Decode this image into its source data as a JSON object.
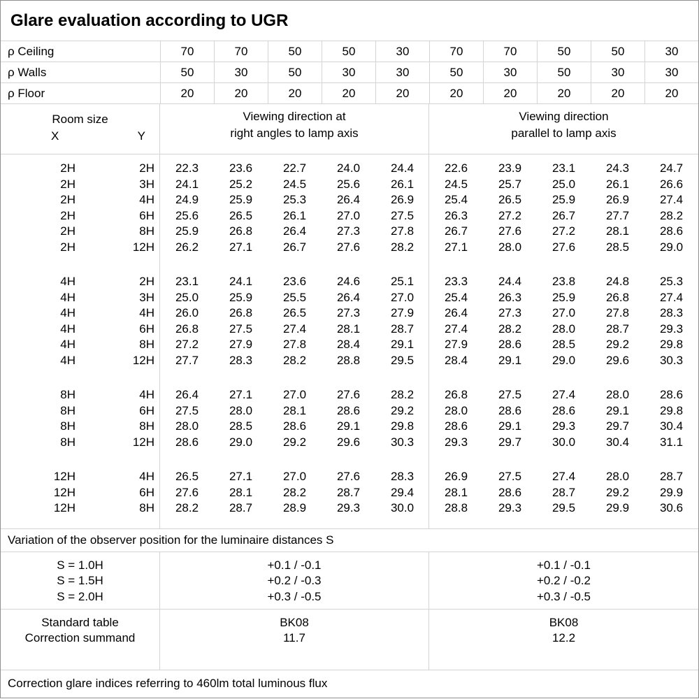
{
  "title": "Glare evaluation according to UGR",
  "reflectance_rows": [
    {
      "label": "ρ Ceiling",
      "values": [
        "70",
        "70",
        "50",
        "50",
        "30",
        "70",
        "70",
        "50",
        "50",
        "30"
      ]
    },
    {
      "label": "ρ Walls",
      "values": [
        "50",
        "30",
        "50",
        "30",
        "30",
        "50",
        "30",
        "50",
        "30",
        "30"
      ]
    },
    {
      "label": "ρ Floor",
      "values": [
        "20",
        "20",
        "20",
        "20",
        "20",
        "20",
        "20",
        "20",
        "20",
        "20"
      ]
    }
  ],
  "headers": {
    "room_size": "Room size",
    "x": "X",
    "y": "Y",
    "perpendicular_line1": "Viewing direction at",
    "perpendicular_line2": "right angles to lamp axis",
    "parallel_line1": "Viewing direction",
    "parallel_line2": "parallel to lamp axis"
  },
  "ugr_table": {
    "type": "table",
    "blocks": [
      {
        "rows": [
          {
            "x": "2H",
            "y": "2H",
            "perpendicular": [
              "22.3",
              "23.6",
              "22.7",
              "24.0",
              "24.4"
            ],
            "parallel": [
              "22.6",
              "23.9",
              "23.1",
              "24.3",
              "24.7"
            ]
          },
          {
            "x": "2H",
            "y": "3H",
            "perpendicular": [
              "24.1",
              "25.2",
              "24.5",
              "25.6",
              "26.1"
            ],
            "parallel": [
              "24.5",
              "25.7",
              "25.0",
              "26.1",
              "26.6"
            ]
          },
          {
            "x": "2H",
            "y": "4H",
            "perpendicular": [
              "24.9",
              "25.9",
              "25.3",
              "26.4",
              "26.9"
            ],
            "parallel": [
              "25.4",
              "26.5",
              "25.9",
              "26.9",
              "27.4"
            ]
          },
          {
            "x": "2H",
            "y": "6H",
            "perpendicular": [
              "25.6",
              "26.5",
              "26.1",
              "27.0",
              "27.5"
            ],
            "parallel": [
              "26.3",
              "27.2",
              "26.7",
              "27.7",
              "28.2"
            ]
          },
          {
            "x": "2H",
            "y": "8H",
            "perpendicular": [
              "25.9",
              "26.8",
              "26.4",
              "27.3",
              "27.8"
            ],
            "parallel": [
              "26.7",
              "27.6",
              "27.2",
              "28.1",
              "28.6"
            ]
          },
          {
            "x": "2H",
            "y": "12H",
            "perpendicular": [
              "26.2",
              "27.1",
              "26.7",
              "27.6",
              "28.2"
            ],
            "parallel": [
              "27.1",
              "28.0",
              "27.6",
              "28.5",
              "29.0"
            ]
          }
        ]
      },
      {
        "rows": [
          {
            "x": "4H",
            "y": "2H",
            "perpendicular": [
              "23.1",
              "24.1",
              "23.6",
              "24.6",
              "25.1"
            ],
            "parallel": [
              "23.3",
              "24.4",
              "23.8",
              "24.8",
              "25.3"
            ]
          },
          {
            "x": "4H",
            "y": "3H",
            "perpendicular": [
              "25.0",
              "25.9",
              "25.5",
              "26.4",
              "27.0"
            ],
            "parallel": [
              "25.4",
              "26.3",
              "25.9",
              "26.8",
              "27.4"
            ]
          },
          {
            "x": "4H",
            "y": "4H",
            "perpendicular": [
              "26.0",
              "26.8",
              "26.5",
              "27.3",
              "27.9"
            ],
            "parallel": [
              "26.4",
              "27.3",
              "27.0",
              "27.8",
              "28.3"
            ]
          },
          {
            "x": "4H",
            "y": "6H",
            "perpendicular": [
              "26.8",
              "27.5",
              "27.4",
              "28.1",
              "28.7"
            ],
            "parallel": [
              "27.4",
              "28.2",
              "28.0",
              "28.7",
              "29.3"
            ]
          },
          {
            "x": "4H",
            "y": "8H",
            "perpendicular": [
              "27.2",
              "27.9",
              "27.8",
              "28.4",
              "29.1"
            ],
            "parallel": [
              "27.9",
              "28.6",
              "28.5",
              "29.2",
              "29.8"
            ]
          },
          {
            "x": "4H",
            "y": "12H",
            "perpendicular": [
              "27.7",
              "28.3",
              "28.2",
              "28.8",
              "29.5"
            ],
            "parallel": [
              "28.4",
              "29.1",
              "29.0",
              "29.6",
              "30.3"
            ]
          }
        ]
      },
      {
        "rows": [
          {
            "x": "8H",
            "y": "4H",
            "perpendicular": [
              "26.4",
              "27.1",
              "27.0",
              "27.6",
              "28.2"
            ],
            "parallel": [
              "26.8",
              "27.5",
              "27.4",
              "28.0",
              "28.6"
            ]
          },
          {
            "x": "8H",
            "y": "6H",
            "perpendicular": [
              "27.5",
              "28.0",
              "28.1",
              "28.6",
              "29.2"
            ],
            "parallel": [
              "28.0",
              "28.6",
              "28.6",
              "29.1",
              "29.8"
            ]
          },
          {
            "x": "8H",
            "y": "8H",
            "perpendicular": [
              "28.0",
              "28.5",
              "28.6",
              "29.1",
              "29.8"
            ],
            "parallel": [
              "28.6",
              "29.1",
              "29.3",
              "29.7",
              "30.4"
            ]
          },
          {
            "x": "8H",
            "y": "12H",
            "perpendicular": [
              "28.6",
              "29.0",
              "29.2",
              "29.6",
              "30.3"
            ],
            "parallel": [
              "29.3",
              "29.7",
              "30.0",
              "30.4",
              "31.1"
            ]
          }
        ]
      },
      {
        "rows": [
          {
            "x": "12H",
            "y": "4H",
            "perpendicular": [
              "26.5",
              "27.1",
              "27.0",
              "27.6",
              "28.3"
            ],
            "parallel": [
              "26.9",
              "27.5",
              "27.4",
              "28.0",
              "28.7"
            ]
          },
          {
            "x": "12H",
            "y": "6H",
            "perpendicular": [
              "27.6",
              "28.1",
              "28.2",
              "28.7",
              "29.4"
            ],
            "parallel": [
              "28.1",
              "28.6",
              "28.7",
              "29.2",
              "29.9"
            ]
          },
          {
            "x": "12H",
            "y": "8H",
            "perpendicular": [
              "28.2",
              "28.7",
              "28.9",
              "29.3",
              "30.0"
            ],
            "parallel": [
              "28.8",
              "29.3",
              "29.5",
              "29.9",
              "30.6"
            ]
          }
        ]
      }
    ]
  },
  "variation": {
    "note": "Variation of the observer position for the luminaire distances S",
    "rows": [
      {
        "label": "S = 1.0H",
        "perpendicular": "+0.1 / -0.1",
        "parallel": "+0.1 / -0.1"
      },
      {
        "label": "S = 1.5H",
        "perpendicular": "+0.2 / -0.3",
        "parallel": "+0.2 / -0.2"
      },
      {
        "label": "S = 2.0H",
        "perpendicular": "+0.3 / -0.5",
        "parallel": "+0.3 / -0.5"
      }
    ]
  },
  "summary": {
    "standard_table_label": "Standard table",
    "correction_summand_label": "Correction summand",
    "standard_table_perpendicular": "BK08",
    "standard_table_parallel": "BK08",
    "correction_summand_perpendicular": "11.7",
    "correction_summand_parallel": "12.2"
  },
  "footer": "Correction glare indices referring to 460lm total luminous flux"
}
